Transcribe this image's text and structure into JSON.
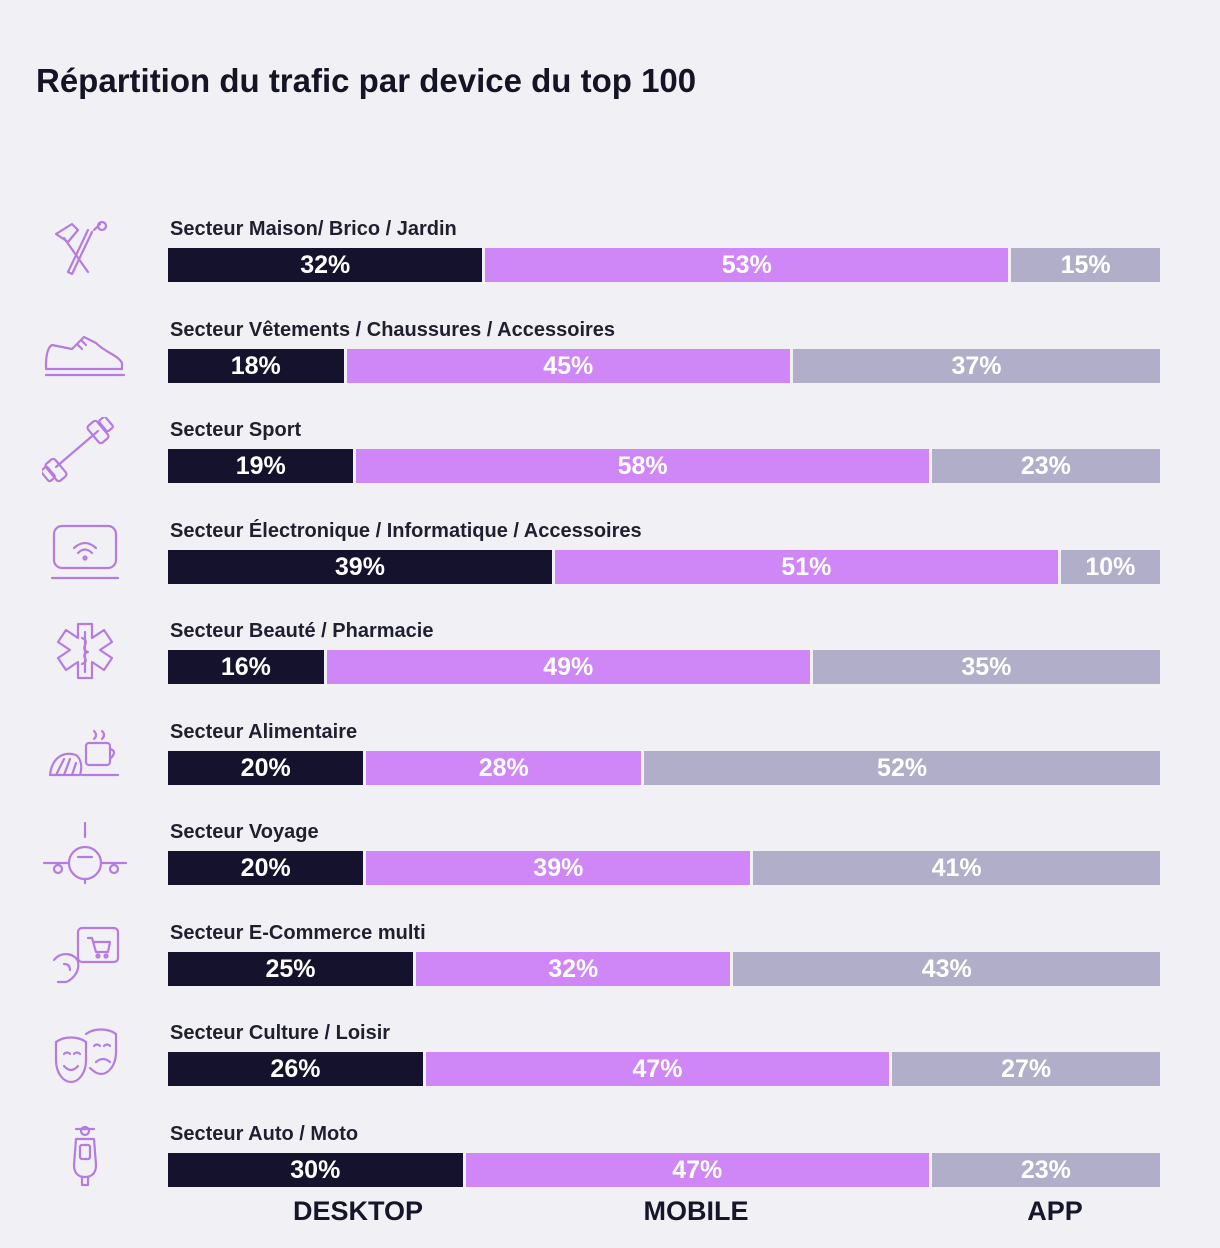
{
  "chart_data": {
    "type": "bar",
    "orientation": "horizontal",
    "stacked": true,
    "normalized_percent": true,
    "title": "Répartition du trafic par device du top 100",
    "legend_placement": "bottom",
    "categories": [
      "Secteur Maison/ Brico / Jardin",
      "Secteur Vêtements /  Chaussures / Accessoires",
      "Secteur Sport",
      "Secteur Électronique / Informatique / Accessoires",
      "Secteur Beauté / Pharmacie",
      "Secteur Alimentaire",
      "Secteur Voyage",
      "Secteur E-Commerce multi",
      "Secteur Culture / Loisir",
      "Secteur Auto / Moto"
    ],
    "series": [
      {
        "name": "DESKTOP",
        "color": "#15122e",
        "values": [
          32,
          18,
          19,
          39,
          16,
          20,
          20,
          25,
          26,
          30
        ]
      },
      {
        "name": "MOBILE",
        "color": "#cf86f7",
        "values": [
          53,
          45,
          58,
          51,
          49,
          28,
          39,
          32,
          47,
          47
        ]
      },
      {
        "name": "APP",
        "color": "#b0aec9",
        "values": [
          15,
          37,
          23,
          10,
          35,
          52,
          41,
          43,
          27,
          23
        ]
      }
    ],
    "data_labels": [
      [
        "32%",
        "53%",
        "15%"
      ],
      [
        "18%",
        "45%",
        "37%"
      ],
      [
        "19%",
        "58%",
        "23%"
      ],
      [
        "39%",
        "51%",
        "10%"
      ],
      [
        "16%",
        "49%",
        "35%"
      ],
      [
        "20%",
        "28%",
        "52%"
      ],
      [
        "20%",
        "39%",
        "41%"
      ],
      [
        "25%",
        "32%",
        "43%"
      ],
      [
        "26%",
        "47%",
        "27%"
      ],
      [
        "30%",
        "47%",
        "23%"
      ]
    ],
    "icons": [
      "tools-icon",
      "sneaker-icon",
      "dumbbell-icon",
      "laptop-wifi-icon",
      "medical-cross-icon",
      "food-icon",
      "airplane-icon",
      "shopping-cart-icon",
      "theater-masks-icon",
      "scooter-icon"
    ]
  }
}
